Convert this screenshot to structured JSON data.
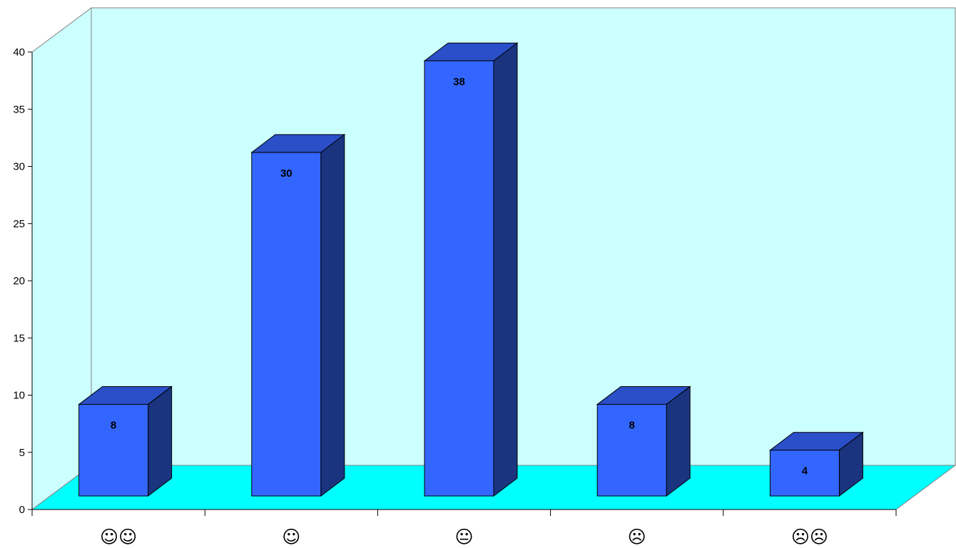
{
  "chart_data": {
    "type": "bar",
    "style": "3d-column",
    "categories": [
      "☺☺",
      "☺",
      "😐",
      "☹",
      "☹☹"
    ],
    "values": [
      8,
      30,
      38,
      8,
      4
    ],
    "data_labels": [
      "8",
      "30",
      "38",
      "8",
      "4"
    ],
    "ylim": [
      0,
      40
    ],
    "yticks": [
      0,
      5,
      10,
      15,
      20,
      25,
      30,
      35,
      40
    ],
    "title": "",
    "xlabel": "",
    "ylabel": "",
    "grid": false,
    "legend": "none",
    "colors": {
      "wall": "#ccffff",
      "floor": "#00ffff",
      "bar_front": "#3366ff",
      "bar_top": "#2a4fc8",
      "bar_side": "#1a3480",
      "outline": "#000000"
    }
  }
}
